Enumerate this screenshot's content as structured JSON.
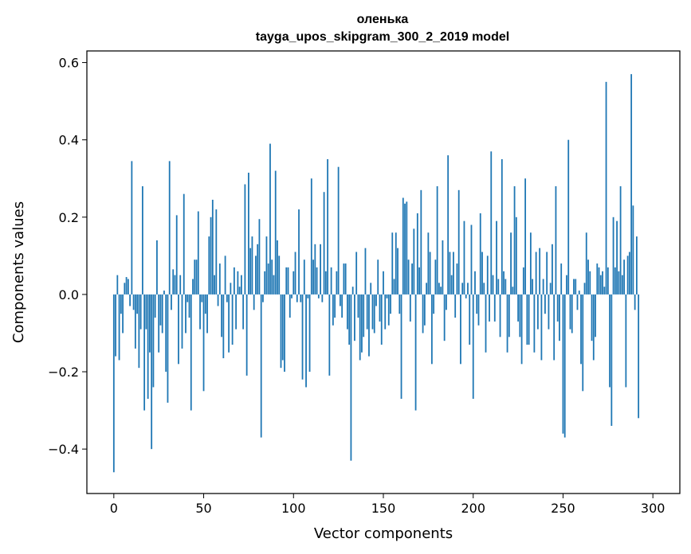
{
  "chart_data": {
    "type": "bar",
    "title_line1": "оленька",
    "title_line2": "tayga_upos_skipgram_300_2_2019 model",
    "xlabel": "Vector components",
    "ylabel": "Components values",
    "xlim": [
      -15,
      315
    ],
    "ylim": [
      -0.515,
      0.63
    ],
    "x_ticks": [
      0,
      50,
      100,
      150,
      200,
      250,
      300
    ],
    "x_tick_labels": [
      "0",
      "50",
      "100",
      "150",
      "200",
      "250",
      "300"
    ],
    "y_ticks": [
      -0.4,
      -0.2,
      0.0,
      0.2,
      0.4,
      0.6
    ],
    "y_tick_labels": [
      "−0.4",
      "−0.2",
      "0.0",
      "0.2",
      "0.4",
      "0.6"
    ],
    "bar_color": "#1f77b4",
    "values": [
      -0.46,
      -0.16,
      0.05,
      -0.17,
      -0.05,
      -0.1,
      0.03,
      0.045,
      0.04,
      -0.03,
      0.345,
      -0.04,
      -0.14,
      -0.05,
      -0.19,
      -0.09,
      0.28,
      -0.3,
      -0.09,
      -0.27,
      -0.15,
      -0.4,
      -0.24,
      -0.06,
      0.14,
      -0.15,
      -0.08,
      -0.1,
      0.01,
      -0.2,
      -0.28,
      0.345,
      -0.04,
      0.065,
      0.05,
      0.205,
      -0.18,
      0.05,
      -0.14,
      0.26,
      -0.1,
      -0.02,
      -0.06,
      -0.3,
      0.04,
      0.09,
      0.09,
      0.215,
      -0.09,
      -0.02,
      -0.25,
      -0.05,
      -0.1,
      0.15,
      0.2,
      0.245,
      0.05,
      0.22,
      -0.03,
      0.08,
      -0.11,
      -0.165,
      0.1,
      -0.02,
      -0.15,
      0.03,
      -0.13,
      0.07,
      -0.09,
      0.06,
      0.02,
      0.05,
      -0.09,
      0.285,
      -0.21,
      0.315,
      0.12,
      0.15,
      -0.04,
      0.1,
      0.13,
      0.195,
      -0.37,
      -0.02,
      0.06,
      0.15,
      0.08,
      0.39,
      0.09,
      0.05,
      0.32,
      0.14,
      0.1,
      -0.19,
      -0.17,
      -0.2,
      0.07,
      0.07,
      -0.06,
      -0.01,
      0.06,
      0.11,
      -0.02,
      0.22,
      -0.02,
      -0.22,
      0.09,
      -0.24,
      -0.01,
      -0.2,
      0.3,
      0.09,
      0.13,
      0.07,
      -0.01,
      0.13,
      -0.02,
      0.265,
      0.06,
      0.35,
      -0.21,
      0.07,
      -0.08,
      -0.06,
      0.06,
      0.33,
      -0.03,
      -0.06,
      0.08,
      0.08,
      -0.09,
      -0.13,
      -0.43,
      0.02,
      -0.12,
      0.11,
      -0.06,
      -0.17,
      -0.15,
      -0.11,
      0.12,
      -0.09,
      -0.16,
      0.03,
      -0.09,
      -0.1,
      -0.03,
      0.09,
      -0.07,
      -0.13,
      0.06,
      -0.09,
      -0.01,
      -0.08,
      -0.05,
      0.16,
      0.04,
      0.16,
      0.12,
      -0.05,
      -0.27,
      0.25,
      0.235,
      0.24,
      0.09,
      -0.07,
      0.08,
      0.17,
      -0.3,
      0.21,
      0.07,
      0.27,
      -0.1,
      -0.08,
      0.03,
      0.16,
      0.11,
      -0.18,
      -0.05,
      0.09,
      0.28,
      0.03,
      0.02,
      0.14,
      -0.12,
      -0.04,
      0.36,
      0.11,
      0.05,
      0.11,
      -0.06,
      0.08,
      0.27,
      -0.18,
      0.03,
      0.19,
      -0.01,
      0.03,
      -0.13,
      0.18,
      -0.27,
      0.06,
      -0.05,
      -0.08,
      0.21,
      0.11,
      0.03,
      -0.15,
      0.1,
      -0.07,
      0.37,
      0.05,
      -0.07,
      0.19,
      0.04,
      -0.11,
      0.35,
      0.06,
      0.04,
      -0.15,
      -0.11,
      0.16,
      0.02,
      0.28,
      0.2,
      -0.07,
      -0.11,
      -0.18,
      0.07,
      0.3,
      -0.13,
      -0.13,
      0.16,
      0.04,
      -0.15,
      0.11,
      -0.09,
      0.12,
      -0.17,
      0.04,
      -0.05,
      0.11,
      -0.09,
      0.03,
      0.13,
      -0.17,
      0.28,
      -0.07,
      -0.12,
      0.08,
      -0.36,
      -0.37,
      0.05,
      0.4,
      -0.09,
      -0.1,
      0.04,
      0.04,
      -0.04,
      0.01,
      -0.18,
      -0.25,
      0.03,
      0.16,
      0.09,
      0.06,
      -0.12,
      -0.17,
      -0.11,
      0.08,
      0.07,
      0.05,
      0.06,
      0.02,
      0.55,
      0.07,
      -0.24,
      -0.34,
      0.2,
      0.07,
      0.19,
      0.06,
      0.28,
      0.05,
      0.09,
      -0.24,
      0.1,
      0.11,
      0.57,
      0.23,
      -0.04,
      0.15,
      -0.32
    ]
  }
}
